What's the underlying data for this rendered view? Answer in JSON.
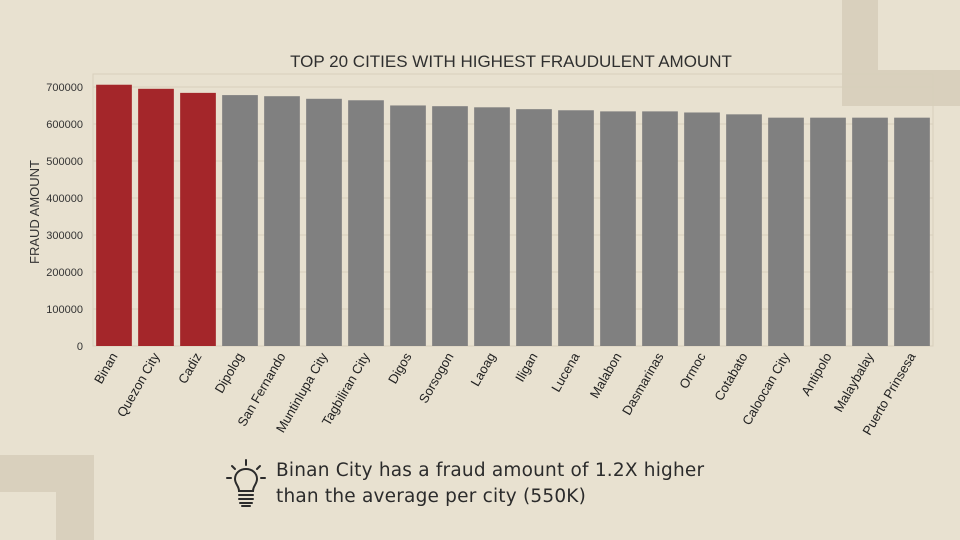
{
  "chart_data": {
    "type": "bar",
    "title": "TOP 20 CITIES WITH HIGHEST FRAUDULENT AMOUNT",
    "xlabel": "",
    "ylabel": "FRAUD AMOUNT",
    "ylim": [
      0,
      735000
    ],
    "yticks": [
      0,
      100000,
      200000,
      300000,
      400000,
      500000,
      600000,
      700000
    ],
    "grid": true,
    "categories": [
      "Binan",
      "Quezon City",
      "Cadiz",
      "Dipolog",
      "San Fernando",
      "Muntinlupa City",
      "Tagbiliran City",
      "Digos",
      "Sorsogon",
      "Laoag",
      "Iligan",
      "Lucena",
      "Malabon",
      "Dasmarinas",
      "Ormoc",
      "Cotabato",
      "Caloocan City",
      "Antipolo",
      "Malaybalay",
      "Puerto Prinsesa"
    ],
    "values": [
      706000,
      695000,
      684000,
      678000,
      675000,
      668000,
      664000,
      650000,
      648000,
      645000,
      640000,
      637000,
      634000,
      634000,
      631000,
      626000,
      617000,
      617000,
      617000,
      617000
    ],
    "highlight_count": 3,
    "colors": {
      "highlight": "#a4262a",
      "default": "#808080"
    }
  },
  "insight": {
    "line1": " Binan City has a fraud amount of 1.2X higher",
    "line2": "than the average per city (550K)",
    "icon": "lightbulb-icon"
  }
}
